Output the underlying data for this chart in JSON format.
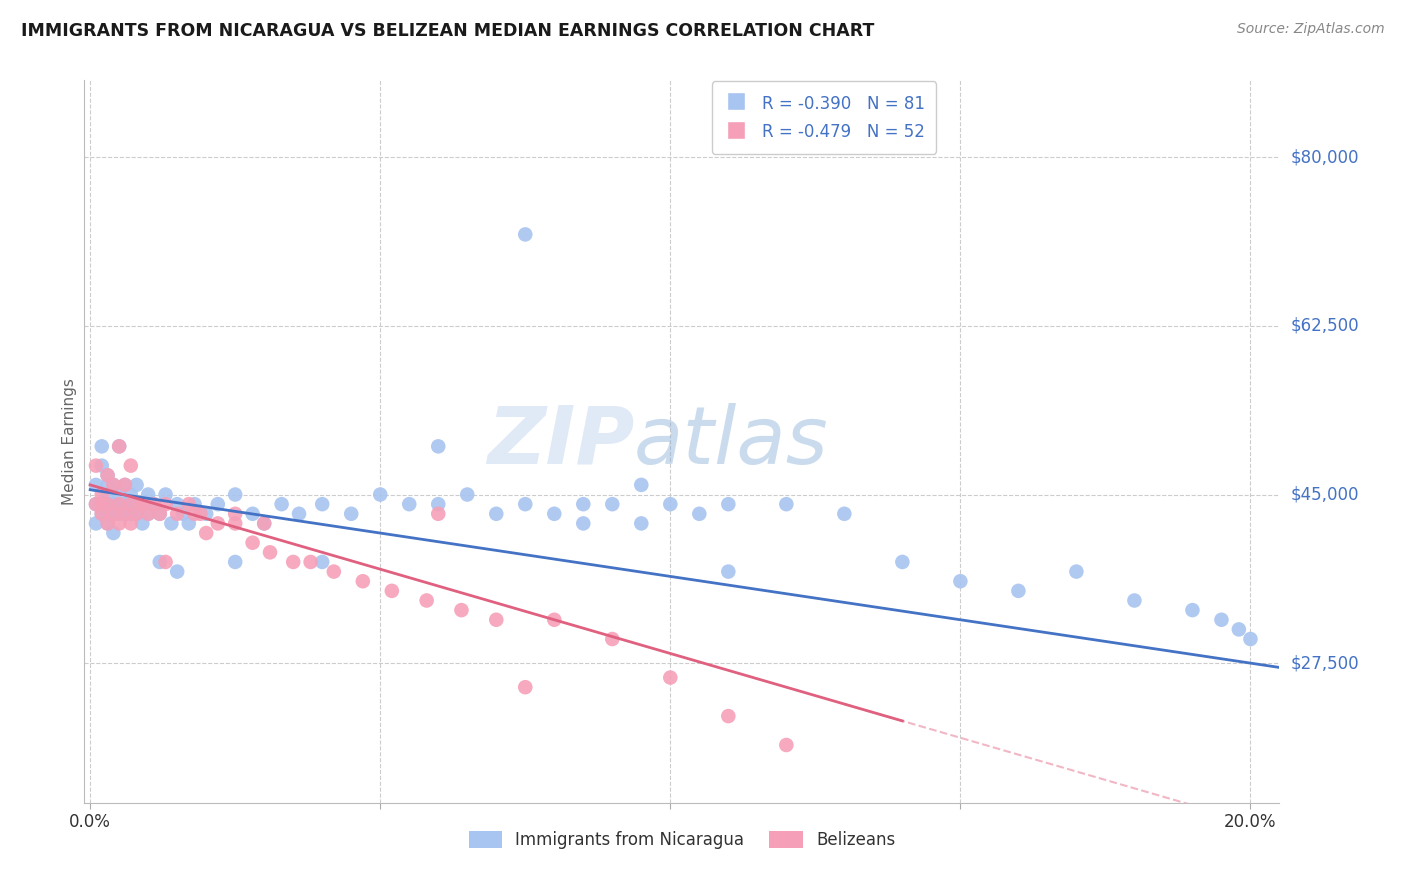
{
  "title": "IMMIGRANTS FROM NICARAGUA VS BELIZEAN MEDIAN EARNINGS CORRELATION CHART",
  "source_text": "Source: ZipAtlas.com",
  "ylabel": "Median Earnings",
  "xlim": [
    -0.001,
    0.205
  ],
  "ylim": [
    13000,
    88000
  ],
  "xticks": [
    0.0,
    0.05,
    0.1,
    0.15,
    0.2
  ],
  "xtick_labels": [
    "0.0%",
    "",
    "",
    "",
    "20.0%"
  ],
  "ytick_labels": [
    "$27,500",
    "$45,000",
    "$62,500",
    "$80,000"
  ],
  "ytick_values": [
    27500,
    45000,
    62500,
    80000
  ],
  "color_blue": "#a8c4f0",
  "color_pink": "#f5a0b8",
  "line_blue": "#4472c4",
  "line_pink": "#e06080",
  "R_blue": -0.39,
  "N_blue": 81,
  "R_pink": -0.479,
  "N_pink": 52,
  "legend_label_blue": "Immigrants from Nicaragua",
  "legend_label_pink": "Belizeans",
  "watermark": "ZIPatlas",
  "title_color": "#1a1a1a",
  "source_color": "#888888",
  "axis_text_color": "#4472c4",
  "ylabel_color": "#666666",
  "blue_scatter_x": [
    0.001,
    0.001,
    0.001,
    0.002,
    0.002,
    0.002,
    0.002,
    0.003,
    0.003,
    0.003,
    0.003,
    0.003,
    0.004,
    0.004,
    0.004,
    0.004,
    0.005,
    0.005,
    0.005,
    0.005,
    0.006,
    0.006,
    0.006,
    0.007,
    0.007,
    0.007,
    0.008,
    0.008,
    0.009,
    0.009,
    0.01,
    0.01,
    0.011,
    0.012,
    0.013,
    0.014,
    0.015,
    0.016,
    0.017,
    0.018,
    0.02,
    0.022,
    0.025,
    0.028,
    0.03,
    0.033,
    0.036,
    0.04,
    0.045,
    0.05,
    0.055,
    0.06,
    0.065,
    0.07,
    0.075,
    0.08,
    0.085,
    0.09,
    0.095,
    0.1,
    0.105,
    0.11,
    0.12,
    0.13,
    0.14,
    0.15,
    0.16,
    0.17,
    0.18,
    0.19,
    0.195,
    0.198,
    0.2,
    0.095,
    0.11,
    0.06,
    0.04,
    0.025,
    0.015,
    0.012,
    0.085
  ],
  "blue_scatter_y": [
    44000,
    46000,
    42000,
    48000,
    44000,
    43000,
    50000,
    45000,
    43000,
    46000,
    42000,
    47000,
    44000,
    43000,
    46000,
    41000,
    50000,
    44000,
    43000,
    45000,
    44000,
    43000,
    46000,
    45000,
    43000,
    44000,
    46000,
    43000,
    44000,
    42000,
    45000,
    43000,
    44000,
    43000,
    45000,
    42000,
    44000,
    43000,
    42000,
    44000,
    43000,
    44000,
    45000,
    43000,
    42000,
    44000,
    43000,
    44000,
    43000,
    45000,
    44000,
    44000,
    45000,
    43000,
    44000,
    43000,
    44000,
    44000,
    46000,
    44000,
    43000,
    44000,
    44000,
    43000,
    38000,
    36000,
    35000,
    37000,
    34000,
    33000,
    32000,
    31000,
    30000,
    42000,
    37000,
    50000,
    38000,
    38000,
    37000,
    38000,
    42000
  ],
  "pink_scatter_x": [
    0.001,
    0.001,
    0.002,
    0.002,
    0.003,
    0.003,
    0.004,
    0.004,
    0.005,
    0.005,
    0.006,
    0.006,
    0.007,
    0.007,
    0.008,
    0.009,
    0.01,
    0.011,
    0.012,
    0.013,
    0.015,
    0.017,
    0.019,
    0.022,
    0.025,
    0.028,
    0.031,
    0.035,
    0.038,
    0.042,
    0.047,
    0.052,
    0.058,
    0.064,
    0.07,
    0.08,
    0.09,
    0.1,
    0.11,
    0.12,
    0.013,
    0.02,
    0.025,
    0.03,
    0.018,
    0.009,
    0.007,
    0.005,
    0.003,
    0.002,
    0.06,
    0.075
  ],
  "pink_scatter_y": [
    44000,
    48000,
    45000,
    43000,
    47000,
    44000,
    46000,
    43000,
    50000,
    44000,
    46000,
    43000,
    48000,
    44000,
    43000,
    44000,
    43000,
    44000,
    43000,
    44000,
    43000,
    44000,
    43000,
    42000,
    42000,
    40000,
    39000,
    38000,
    38000,
    37000,
    36000,
    35000,
    34000,
    33000,
    32000,
    32000,
    30000,
    26000,
    22000,
    19000,
    38000,
    41000,
    43000,
    42000,
    43000,
    44000,
    42000,
    42000,
    42000,
    44000,
    43000,
    25000
  ]
}
